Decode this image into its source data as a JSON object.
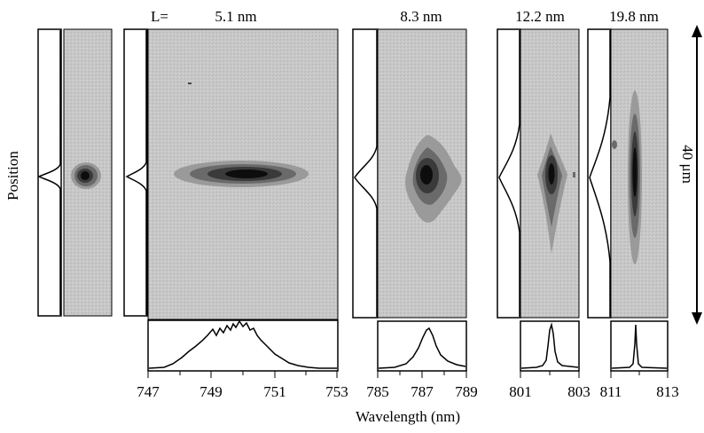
{
  "figure": {
    "y_label": "Position",
    "x_label": "Wavelength (nm)",
    "length_prefix": "L=",
    "scale_bar_label": "40 μm",
    "panels": [
      {
        "length_label": "",
        "ticks": []
      },
      {
        "length_label": "5.1 nm",
        "ticks": [
          "747",
          "749",
          "751",
          "753"
        ]
      },
      {
        "length_label": "8.3 nm",
        "ticks": [
          "785",
          "787",
          "789"
        ]
      },
      {
        "length_label": "12.2 nm",
        "ticks": [
          "801",
          "803"
        ]
      },
      {
        "length_label": "19.8 nm",
        "ticks": [
          "811",
          "813"
        ]
      }
    ]
  },
  "colors": {
    "map_background": "#c8c8c8",
    "contour_levels": [
      "#9a9a9a",
      "#6a6a6a",
      "#3a3a3a",
      "#0d0d0d"
    ],
    "line": "#000000"
  }
}
